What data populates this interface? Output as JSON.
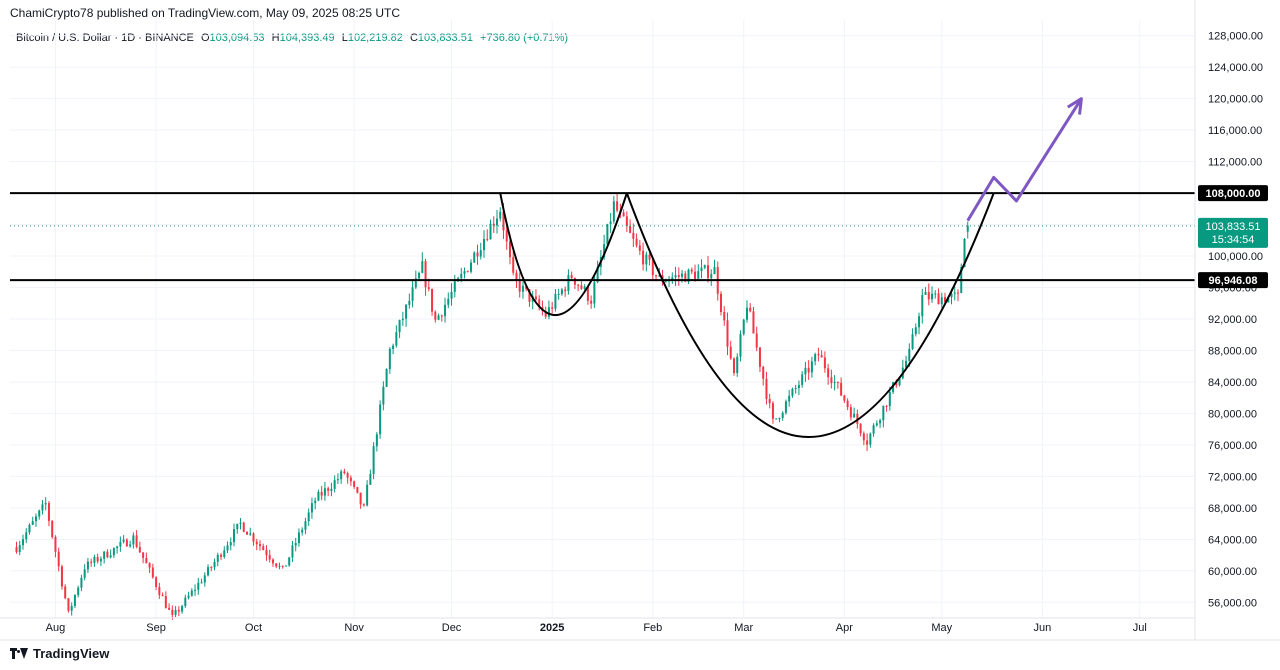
{
  "header": {
    "publisher_line": "ChamiCrypto78 published on TradingView.com, May 09, 2025 08:25 UTC"
  },
  "legend": {
    "symbol": "Bitcoin / U.S. Dollar · 1D · BINANCE",
    "open_label": "O",
    "open": "103,094.53",
    "high_label": "H",
    "high": "104,393.49",
    "low_label": "L",
    "low": "102,219.82",
    "close_label": "C",
    "close": "103,833.51",
    "change": "+736.80 (+0.71%)"
  },
  "footer": {
    "brand": "TradingView"
  },
  "colors": {
    "up": "#089981",
    "down": "#f23645",
    "grid": "#f0f3fa",
    "line": "#000000",
    "arrow": "#7e57c2",
    "price_tag": "#089981"
  },
  "chart_data": {
    "type": "candlestick",
    "x_axis_labels": [
      "Aug",
      "Sep",
      "Oct",
      "Nov",
      "Dec",
      "2025",
      "Feb",
      "Mar",
      "Apr",
      "May",
      "Jun",
      "Jul"
    ],
    "x_axis_dates": [
      "2024-08-01",
      "2024-09-01",
      "2024-10-01",
      "2024-11-01",
      "2024-12-01",
      "2025-01-01",
      "2025-02-01",
      "2025-03-01",
      "2025-04-01",
      "2025-05-01",
      "2025-06-01",
      "2025-07-01"
    ],
    "y_axis_ticks": [
      "56,000.00",
      "60,000.00",
      "64,000.00",
      "68,000.00",
      "72,000.00",
      "76,000.00",
      "80,000.00",
      "84,000.00",
      "88,000.00",
      "92,000.00",
      "96,000.00",
      "100,000.00",
      "104,000.00",
      "108,000.00",
      "112,000.00",
      "116,000.00",
      "120,000.00",
      "124,000.00",
      "128,000.00"
    ],
    "y_axis_values": [
      56000,
      60000,
      64000,
      68000,
      72000,
      76000,
      80000,
      84000,
      88000,
      92000,
      96000,
      100000,
      104000,
      108000,
      112000,
      116000,
      120000,
      124000,
      128000
    ],
    "ylim": [
      54000,
      130000
    ],
    "horizontal_levels": [
      {
        "value": 108000,
        "label": "108,000.00"
      },
      {
        "value": 96946.08,
        "label": "96,946.08"
      }
    ],
    "last_price": {
      "value": 103833.51,
      "label": "103,833.51",
      "countdown": "15:34:54"
    },
    "close_anchors": [
      [
        "2024-07-20",
        63000
      ],
      [
        "2024-07-29",
        68500
      ],
      [
        "2024-08-05",
        54500
      ],
      [
        "2024-08-10",
        60500
      ],
      [
        "2024-08-25",
        64200
      ],
      [
        "2024-09-06",
        54000
      ],
      [
        "2024-09-18",
        60500
      ],
      [
        "2024-09-27",
        66000
      ],
      [
        "2024-10-10",
        60000
      ],
      [
        "2024-10-20",
        69000
      ],
      [
        "2024-10-29",
        72500
      ],
      [
        "2024-11-04",
        67800
      ],
      [
        "2024-11-12",
        88000
      ],
      [
        "2024-11-22",
        98500
      ],
      [
        "2024-11-26",
        91800
      ],
      [
        "2024-12-05",
        98000
      ],
      [
        "2024-12-16",
        106000
      ],
      [
        "2024-12-20",
        97000
      ],
      [
        "2024-12-30",
        92500
      ],
      [
        "2025-01-07",
        97500
      ],
      [
        "2025-01-13",
        94500
      ],
      [
        "2025-01-20",
        106500
      ],
      [
        "2025-01-27",
        101000
      ],
      [
        "2025-02-03",
        97000
      ],
      [
        "2025-02-20",
        98200
      ],
      [
        "2025-02-26",
        84500
      ],
      [
        "2025-03-02",
        94000
      ],
      [
        "2025-03-10",
        78800
      ],
      [
        "2025-03-24",
        87500
      ],
      [
        "2025-03-31",
        82500
      ],
      [
        "2025-04-08",
        76500
      ],
      [
        "2025-04-21",
        87500
      ],
      [
        "2025-04-25",
        94800
      ],
      [
        "2025-05-06",
        94700
      ],
      [
        "2025-05-08",
        103000
      ],
      [
        "2025-05-09",
        103833.51
      ]
    ],
    "cup_curves": [
      {
        "from": [
          "2024-12-16",
          108000
        ],
        "via": [
          "2025-01-02",
          92500
        ],
        "to": [
          "2025-01-24",
          108000
        ]
      },
      {
        "from": [
          "2025-01-24",
          108000
        ],
        "via": [
          "2025-03-21",
          77000
        ],
        "to": [
          "2025-05-17",
          108000
        ]
      }
    ],
    "projection_arrow": [
      [
        "2025-05-09",
        104500
      ],
      [
        "2025-05-17",
        110000
      ],
      [
        "2025-05-24",
        107000
      ],
      [
        "2025-06-13",
        120000
      ]
    ]
  }
}
